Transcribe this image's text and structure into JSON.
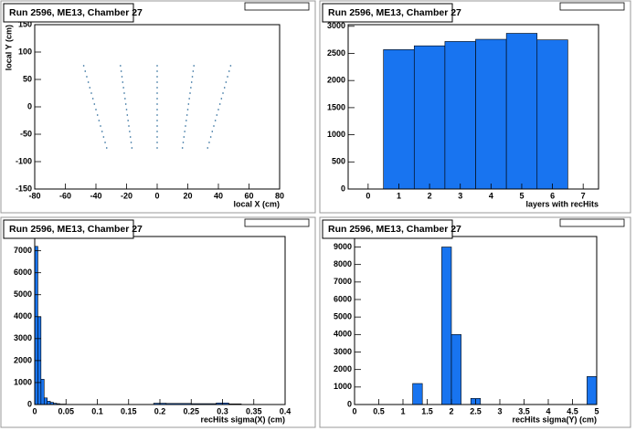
{
  "chart_data": [
    {
      "type": "scatter",
      "title": "Run 2596, ME13, Chamber 27",
      "x_label": "local X (cm)",
      "y_label": "local Y (cm)",
      "color": "#2a6a9a",
      "x": [
        -48,
        -24,
        0,
        24,
        48,
        -47,
        -23.5,
        0,
        23.5,
        47,
        -46,
        -23,
        0,
        23,
        46,
        -45,
        -22.5,
        0,
        22.5,
        45,
        -44,
        -22,
        0,
        22,
        44,
        -43,
        -21.5,
        0,
        21.5,
        43,
        -42,
        -21,
        0,
        21,
        42,
        -41,
        -20.5,
        0,
        20.5,
        41,
        -40,
        -20,
        0,
        20,
        40,
        -39,
        -19.5,
        0,
        19.5,
        39,
        -38,
        -19,
        0,
        19,
        38,
        -37,
        -18.5,
        0,
        18.5,
        37,
        -36,
        -18,
        0,
        18,
        36,
        -35,
        -17.5,
        0,
        17.5,
        35,
        -34,
        -17,
        0,
        17,
        34,
        -33,
        -16.5,
        0,
        16.5,
        33
      ],
      "y": [
        75,
        75,
        75,
        75,
        75,
        65,
        65,
        65,
        65,
        65,
        55,
        55,
        55,
        55,
        55,
        45,
        45,
        45,
        45,
        45,
        35,
        35,
        35,
        35,
        35,
        25,
        25,
        25,
        25,
        25,
        15,
        15,
        15,
        15,
        15,
        5,
        5,
        5,
        5,
        5,
        -5,
        -5,
        -5,
        -5,
        -5,
        -15,
        -15,
        -15,
        -15,
        -15,
        -25,
        -25,
        -25,
        -25,
        -25,
        -35,
        -35,
        -35,
        -35,
        -35,
        -45,
        -45,
        -45,
        -45,
        -45,
        -55,
        -55,
        -55,
        -55,
        -55,
        -65,
        -65,
        -65,
        -65,
        -65,
        -75,
        -75,
        -75,
        -75,
        -75
      ],
      "xlim": [
        -80,
        80
      ],
      "xticks": [
        -80,
        -60,
        -40,
        -20,
        0,
        20,
        40,
        60,
        80
      ],
      "ylim": [
        -150,
        150
      ],
      "yticks": [
        -150,
        -100,
        -50,
        0,
        50,
        100,
        150
      ]
    },
    {
      "type": "histogram",
      "title": "Run 2596, ME13, Chamber 27",
      "x_label": "layers with recHits",
      "color": "#1874f0",
      "bins": [
        0.5,
        1.5,
        2.5,
        3.5,
        4.5,
        5.5,
        6.5
      ],
      "values": [
        2570,
        2640,
        2720,
        2760,
        2870,
        2750
      ],
      "xlim": [
        -0.65,
        7.5
      ],
      "xticks": [
        0,
        1,
        2,
        3,
        4,
        5,
        6,
        7
      ],
      "ylim": [
        0,
        3030
      ],
      "yticks": [
        0,
        500,
        1000,
        1500,
        2000,
        2500,
        3000
      ]
    },
    {
      "type": "histogram",
      "title": "Run 2596, ME13, Chamber 27",
      "x_label": "recHits sigma(X) (cm)",
      "color": "#1874f0",
      "bins": [
        0,
        0.005,
        0.01,
        0.015,
        0.02,
        0.025,
        0.03,
        0.035,
        0.04,
        0.05,
        0.19,
        0.21,
        0.25,
        0.29,
        0.31,
        0.33,
        0.4
      ],
      "values": [
        7200,
        4000,
        1150,
        300,
        150,
        100,
        60,
        40,
        20,
        5,
        60,
        50,
        40,
        70,
        30,
        5
      ],
      "xlim": [
        0,
        0.4
      ],
      "xticks": [
        0,
        0.05,
        0.1,
        0.15,
        0.2,
        0.25,
        0.3,
        0.35,
        0.4
      ],
      "ylim": [
        0,
        7650
      ],
      "yticks": [
        0,
        1000,
        2000,
        3000,
        4000,
        5000,
        6000,
        7000
      ]
    },
    {
      "type": "histogram",
      "title": "Run 2596, ME13, Chamber 27",
      "x_label": "recHits sigma(Y) (cm)",
      "color": "#1874f0",
      "bins": [
        0,
        0.2,
        0.4,
        0.6,
        0.8,
        1,
        1.2,
        1.4,
        1.6,
        1.8,
        2,
        2.2,
        2.4,
        2.6,
        2.8,
        3,
        3.2,
        3.4,
        3.6,
        3.8,
        4,
        4.2,
        4.4,
        4.6,
        4.8,
        5
      ],
      "values": [
        0,
        0,
        0,
        0,
        0,
        0,
        1200,
        0,
        0,
        9000,
        4000,
        0,
        350,
        0,
        0,
        0,
        0,
        0,
        0,
        0,
        0,
        0,
        0,
        0,
        1600
      ],
      "xlim": [
        0,
        5
      ],
      "xticks": [
        0,
        0.5,
        1,
        1.5,
        2,
        2.5,
        3,
        3.5,
        4,
        4.5,
        5
      ],
      "ylim": [
        0,
        9600
      ],
      "yticks": [
        0,
        1000,
        2000,
        3000,
        4000,
        5000,
        6000,
        7000,
        8000,
        9000
      ]
    }
  ]
}
